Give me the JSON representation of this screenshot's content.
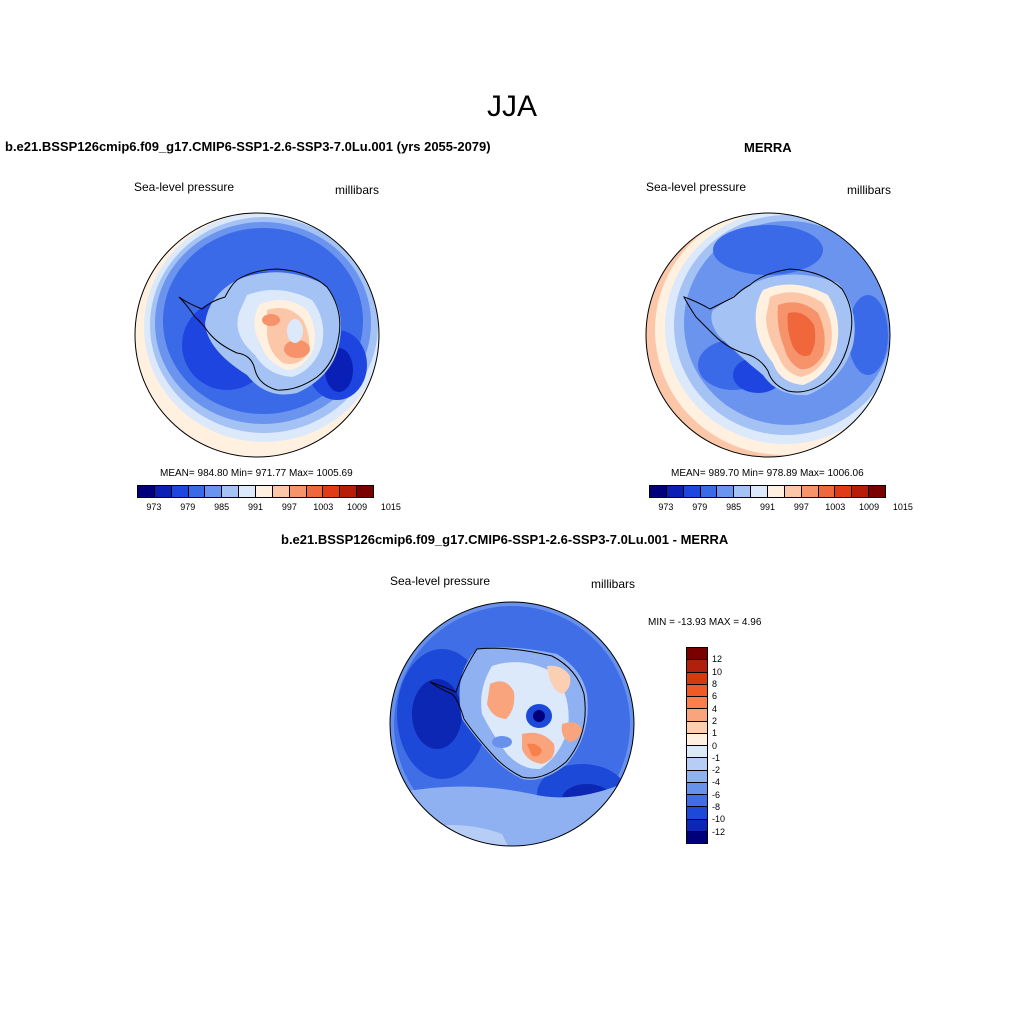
{
  "title": "JJA",
  "colors": {
    "abs_scale": [
      "#00007a",
      "#0a1fb5",
      "#1f45e0",
      "#3a6ae8",
      "#6a94ee",
      "#a4c2f4",
      "#dbe9fb",
      "#fff0e0",
      "#fcc6a8",
      "#f7936b",
      "#f0673c",
      "#e03a16",
      "#b91b0a",
      "#7a0000"
    ],
    "diff_scale": [
      "#7a0000",
      "#b1200c",
      "#d9380f",
      "#f15a25",
      "#f6814d",
      "#f9a47c",
      "#fbcfb1",
      "#fff0e0",
      "#dbe9fb",
      "#b6cdf6",
      "#8fb0f1",
      "#6891ec",
      "#3f6ee6",
      "#1c49d8",
      "#0b27b3",
      "#00007a"
    ]
  },
  "panels": [
    {
      "title": "b.e21.BSSP126cmip6.f09_g17.CMIP6-SSP1-2.6-SSP3-7.0Lu.001 (yrs 2055-2079)",
      "left_label": "Sea-level pressure",
      "right_label": "millibars",
      "stats": "MEAN= 984.80  Min= 971.77  Max= 1005.69",
      "colorbar_ticks": [
        "973",
        "979",
        "985",
        "991",
        "997",
        "1003",
        "1009",
        "1015"
      ]
    },
    {
      "title": "MERRA",
      "left_label": "Sea-level pressure",
      "right_label": "millibars",
      "stats": "MEAN= 989.70  Min= 978.89  Max= 1006.06",
      "colorbar_ticks": [
        "973",
        "979",
        "985",
        "991",
        "997",
        "1003",
        "1009",
        "1015"
      ]
    },
    {
      "title": "b.e21.BSSP126cmip6.f09_g17.CMIP6-SSP1-2.6-SSP3-7.0Lu.001 - MERRA",
      "left_label": "Sea-level pressure",
      "right_label": "millibars",
      "stats": "MIN = -13.93 MAX =   4.96",
      "colorbar_ticks": [
        "12",
        "10",
        "8",
        "6",
        "4",
        "2",
        "1",
        "0",
        "-1",
        "-2",
        "-4",
        "-6",
        "-8",
        "-10",
        "-12"
      ]
    }
  ]
}
